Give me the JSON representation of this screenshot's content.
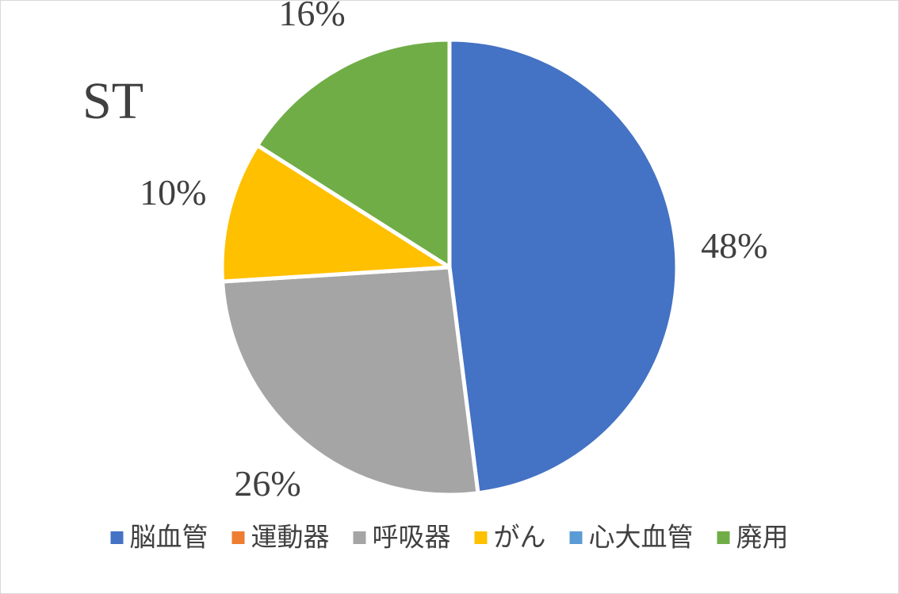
{
  "chart_data": {
    "type": "pie",
    "title": "ST",
    "categories": [
      "脳血管",
      "運動器",
      "呼吸器",
      "がん",
      "心大血管",
      "廃用"
    ],
    "values": [
      48,
      0,
      26,
      10,
      0,
      16
    ],
    "value_labels": [
      "48%",
      null,
      "26%",
      "10%",
      null,
      "16%"
    ],
    "colors": [
      "#4472c4",
      "#ed7d31",
      "#a5a5a5",
      "#ffc000",
      "#5b9bd5",
      "#70ad47"
    ],
    "legend": "bottom"
  }
}
